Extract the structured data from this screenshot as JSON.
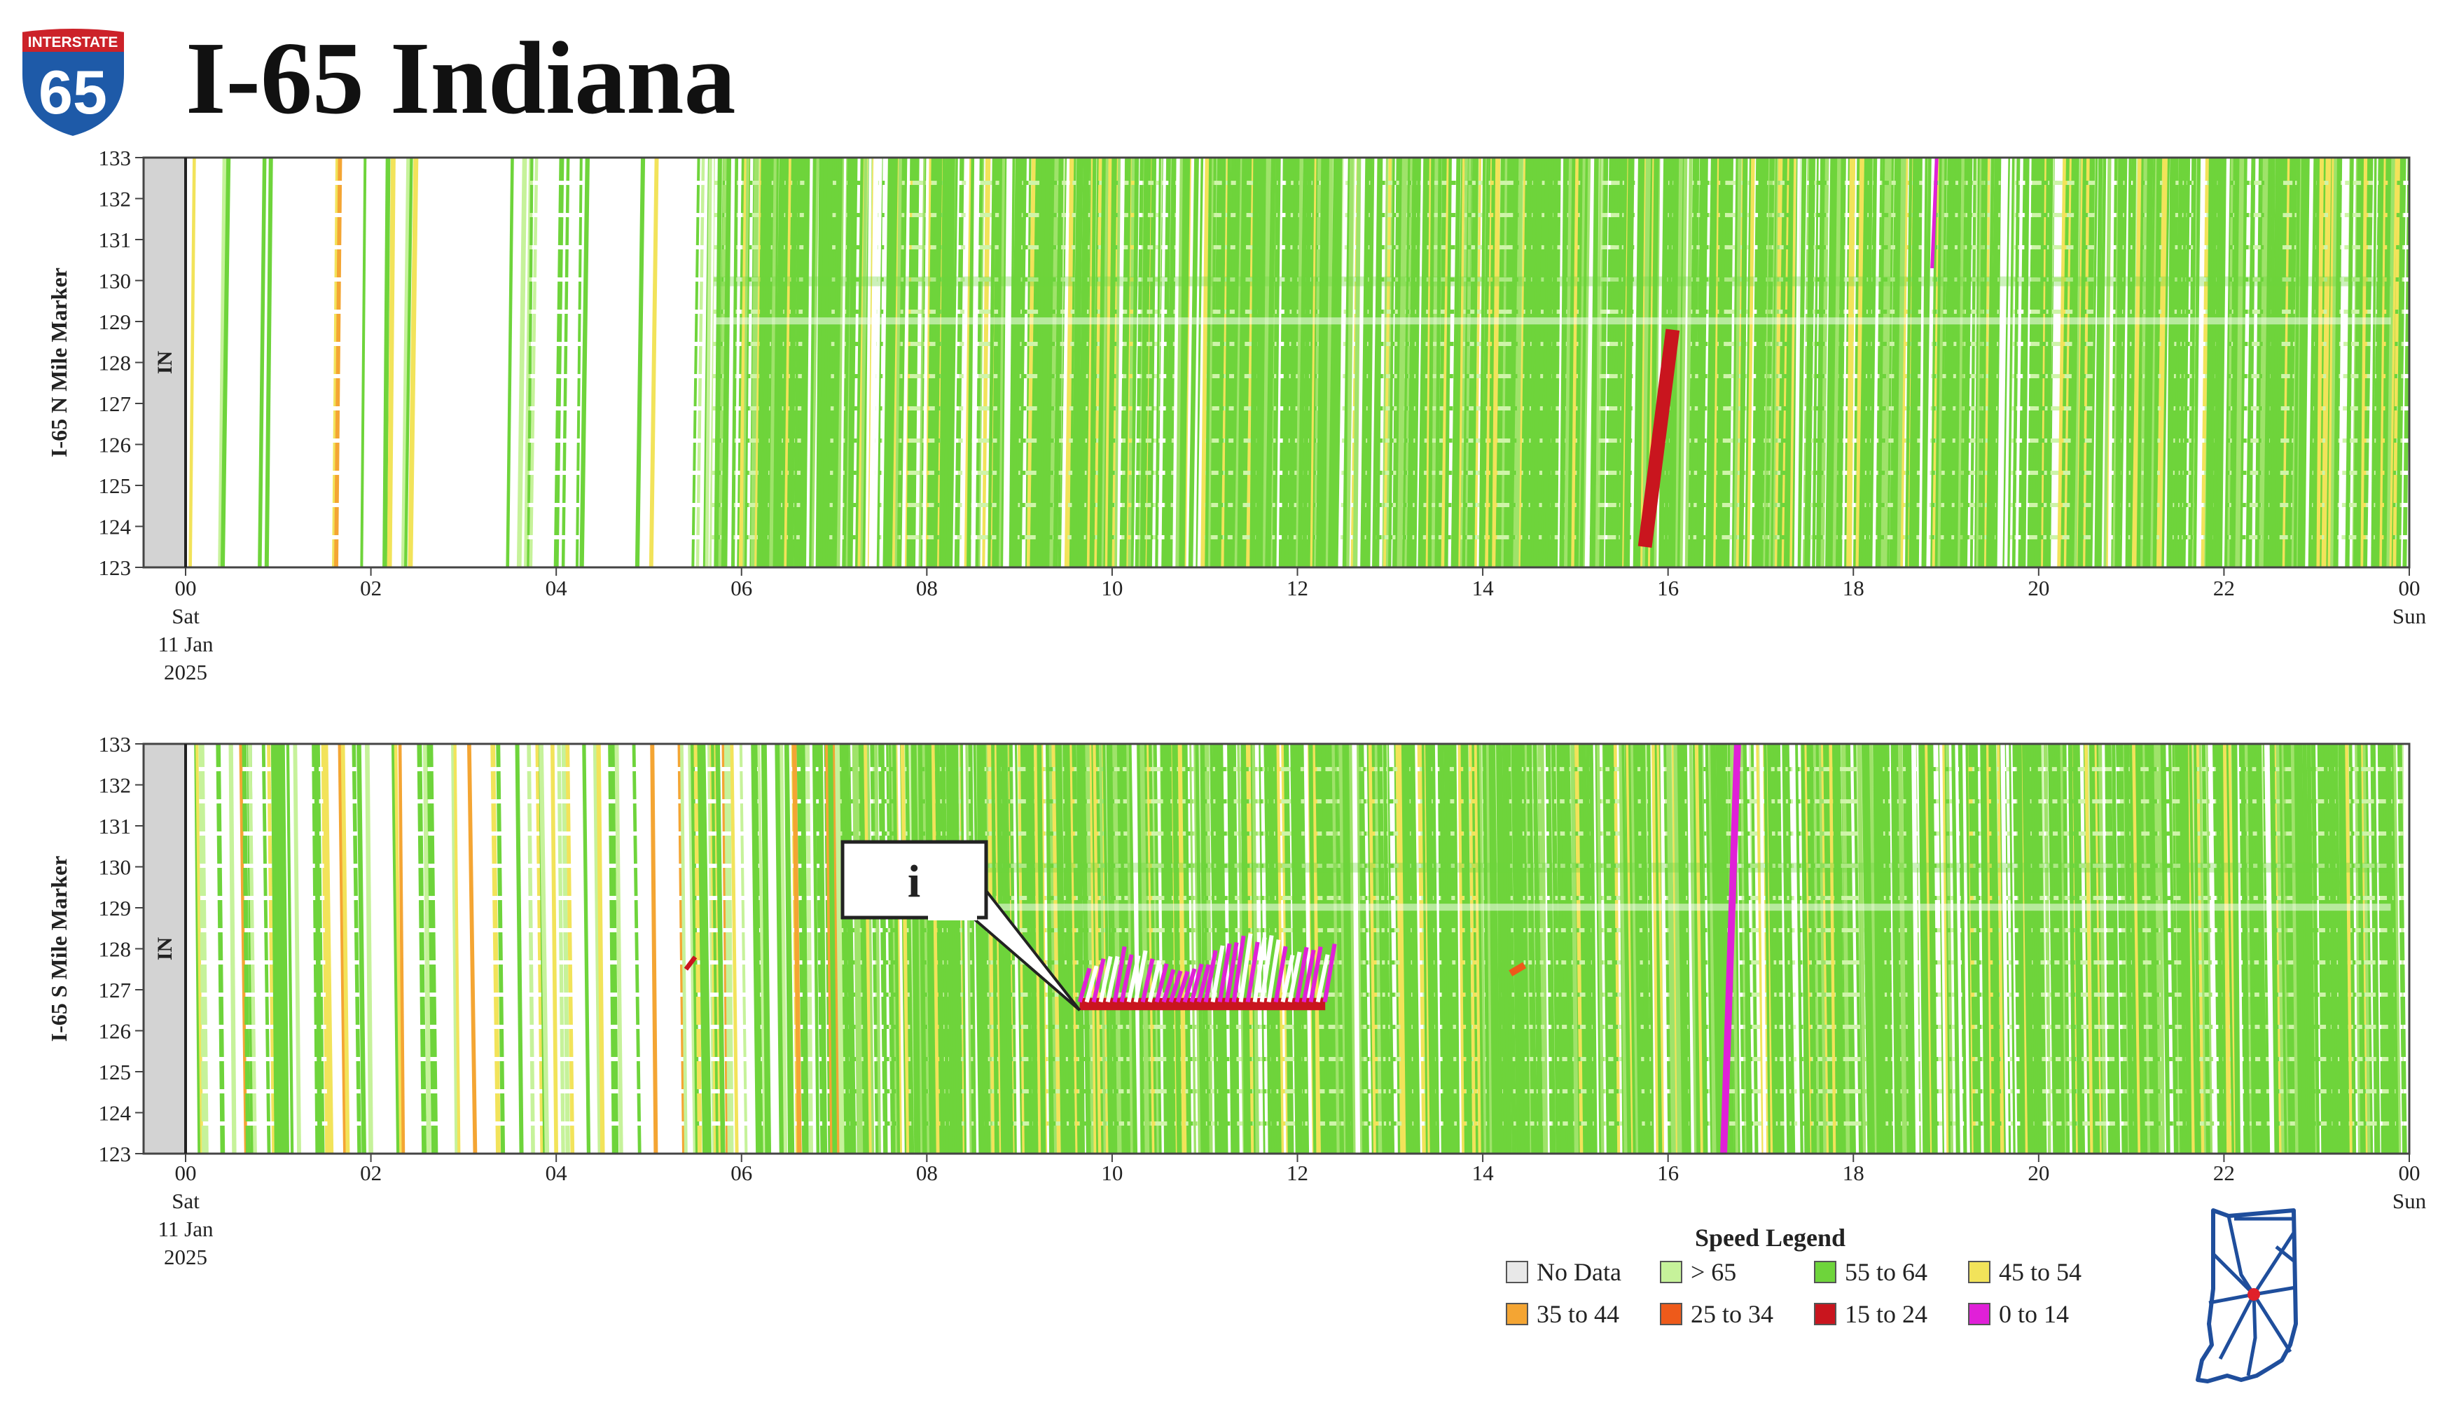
{
  "title": "I-65 Indiana",
  "shield": {
    "top_text": "INTERSTATE",
    "number": "65",
    "color_top": "#cc2229",
    "color_body": "#1e5aa8"
  },
  "colors": {
    "nodata": "#e8e8e8",
    "gt65": "#c6f29a",
    "s55_64": "#6ed43b",
    "s45_54": "#f2e35a",
    "s35_44": "#f4a533",
    "s25_34": "#ee5a1a",
    "s15_24": "#c9151e",
    "s0_14": "#e020d8",
    "state_strip": "#d3d3d3"
  },
  "chart_data": [
    {
      "type": "heatmap",
      "ylabel": "I-65 N Mile Marker",
      "state_label": "IN",
      "y_ticks": [
        "123",
        "124",
        "125",
        "126",
        "127",
        "128",
        "129",
        "130",
        "131",
        "132",
        "133"
      ],
      "ylim": [
        123,
        133
      ],
      "x_ticks": [
        "00",
        "02",
        "04",
        "06",
        "08",
        "10",
        "12",
        "14",
        "16",
        "18",
        "20",
        "22",
        "00"
      ],
      "x_start_label": [
        "Sat",
        "11 Jan",
        "2025"
      ],
      "x_end_label": "Sun",
      "xlim_hours": [
        0,
        24
      ],
      "events": [
        {
          "hours": [
            15.75,
            16.05
          ],
          "miles": [
            123.5,
            128.8
          ],
          "speed": "15 to 24"
        },
        {
          "hours": [
            18.85,
            18.9
          ],
          "miles": [
            130.3,
            133
          ],
          "speed": "0 to 14"
        }
      ]
    },
    {
      "type": "heatmap",
      "ylabel": "I-65 S Mile Marker",
      "state_label": "IN",
      "y_ticks": [
        "123",
        "124",
        "125",
        "126",
        "127",
        "128",
        "129",
        "130",
        "131",
        "132",
        "133"
      ],
      "ylim": [
        123,
        133
      ],
      "x_ticks": [
        "00",
        "02",
        "04",
        "06",
        "08",
        "10",
        "12",
        "14",
        "16",
        "18",
        "20",
        "22",
        "00"
      ],
      "x_start_label": [
        "Sat",
        "11 Jan",
        "2025"
      ],
      "x_end_label": "Sun",
      "xlim_hours": [
        0,
        24
      ],
      "annotation": {
        "text": "i",
        "hours": 9.65,
        "mile": 126.5
      },
      "events": [
        {
          "hours": [
            9.65,
            12.3
          ],
          "miles": [
            126.5,
            128.7
          ],
          "speed": "0 to 14"
        },
        {
          "hours": [
            16.6,
            16.75
          ],
          "miles": [
            123,
            133
          ],
          "speed": "0 to 14"
        },
        {
          "hours": [
            5.4,
            5.5
          ],
          "miles": [
            127.5,
            127.8
          ],
          "speed": "15 to 24"
        },
        {
          "hours": [
            14.3,
            14.45
          ],
          "miles": [
            127.4,
            127.6
          ],
          "speed": "25 to 34"
        }
      ]
    }
  ],
  "legend": {
    "title": "Speed Legend",
    "items": [
      {
        "label": "No Data",
        "color": "#e8e8e8"
      },
      {
        "label": "> 65",
        "color": "#c6f29a"
      },
      {
        "label": "55 to 64",
        "color": "#6ed43b"
      },
      {
        "label": "45 to 54",
        "color": "#f2e35a"
      },
      {
        "label": "35 to 44",
        "color": "#f4a533"
      },
      {
        "label": "25 to 34",
        "color": "#ee5a1a"
      },
      {
        "label": "15 to 24",
        "color": "#c9151e"
      },
      {
        "label": "0 to 14",
        "color": "#e020d8"
      }
    ]
  },
  "state_map": {
    "outline_color": "#1f4e9c",
    "marker_color": "#e0202a"
  }
}
